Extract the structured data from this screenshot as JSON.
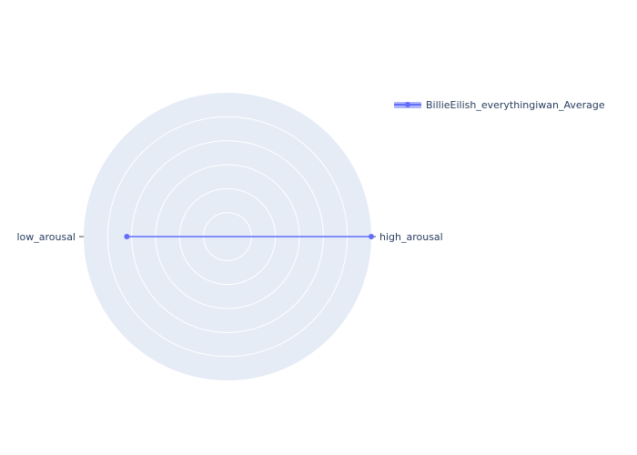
{
  "chart_data": {
    "type": "radar",
    "title": "",
    "categories": [
      "high_arousal",
      "low_arousal"
    ],
    "series": [
      {
        "name": "BillieEilish_everythingiwan_Average",
        "values": [
          1.0,
          0.7
        ],
        "color": "#636efa"
      }
    ],
    "radial_range": [
      0,
      1
    ],
    "grid": true,
    "legend_position": "top-right",
    "polar_background": "#e5ecf6",
    "grid_color": "#ffffff",
    "text_color": "#2a3f5f"
  }
}
